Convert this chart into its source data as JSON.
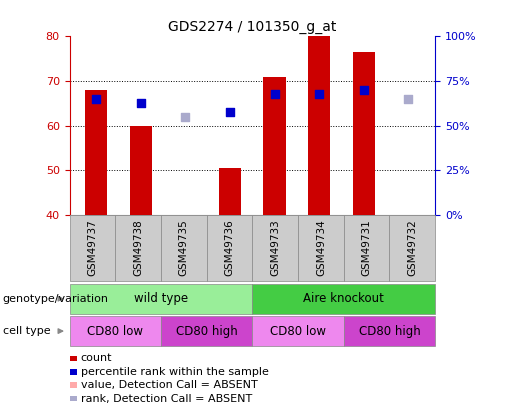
{
  "title": "GDS2274 / 101350_g_at",
  "samples": [
    "GSM49737",
    "GSM49738",
    "GSM49735",
    "GSM49736",
    "GSM49733",
    "GSM49734",
    "GSM49731",
    "GSM49732"
  ],
  "bar_bottom": 40,
  "ylim": [
    40,
    80
  ],
  "ylim_right": [
    0,
    100
  ],
  "yticks_left": [
    40,
    50,
    60,
    70,
    80
  ],
  "yticks_right": [
    0,
    25,
    50,
    75,
    100
  ],
  "count_values": [
    68,
    60,
    null,
    50.5,
    71,
    80,
    76.5,
    null
  ],
  "count_color_normal": "#cc0000",
  "count_color_absent": "#ffaaaa",
  "percentile_values": [
    66,
    65,
    null,
    63,
    67,
    67,
    68,
    null
  ],
  "percentile_color": "#0000cc",
  "rank_absent_values": [
    null,
    null,
    62,
    null,
    null,
    null,
    null,
    66
  ],
  "rank_absent_color": "#aaaacc",
  "absent_mask": [
    false,
    false,
    true,
    false,
    false,
    false,
    false,
    true
  ],
  "genotype_groups": [
    {
      "label": "wild type",
      "start": 0,
      "end": 4,
      "color": "#99ee99"
    },
    {
      "label": "Aire knockout",
      "start": 4,
      "end": 8,
      "color": "#44cc44"
    }
  ],
  "cell_type_groups": [
    {
      "label": "CD80 low",
      "start": 0,
      "end": 2,
      "color": "#ee88ee"
    },
    {
      "label": "CD80 high",
      "start": 2,
      "end": 4,
      "color": "#cc44cc"
    },
    {
      "label": "CD80 low",
      "start": 4,
      "end": 6,
      "color": "#ee88ee"
    },
    {
      "label": "CD80 high",
      "start": 6,
      "end": 8,
      "color": "#cc44cc"
    }
  ],
  "legend_items": [
    {
      "label": "count",
      "color": "#cc0000"
    },
    {
      "label": "percentile rank within the sample",
      "color": "#0000cc"
    },
    {
      "label": "value, Detection Call = ABSENT",
      "color": "#ffaaaa"
    },
    {
      "label": "rank, Detection Call = ABSENT",
      "color": "#aaaacc"
    }
  ],
  "label_genotype": "genotype/variation",
  "label_celltype": "cell type",
  "bar_width": 0.5,
  "gridlines": [
    50,
    60,
    70
  ],
  "dot_size": 35,
  "xtick_bg": "#cccccc",
  "spine_color_left": "#cc0000",
  "spine_color_right": "#0000cc"
}
